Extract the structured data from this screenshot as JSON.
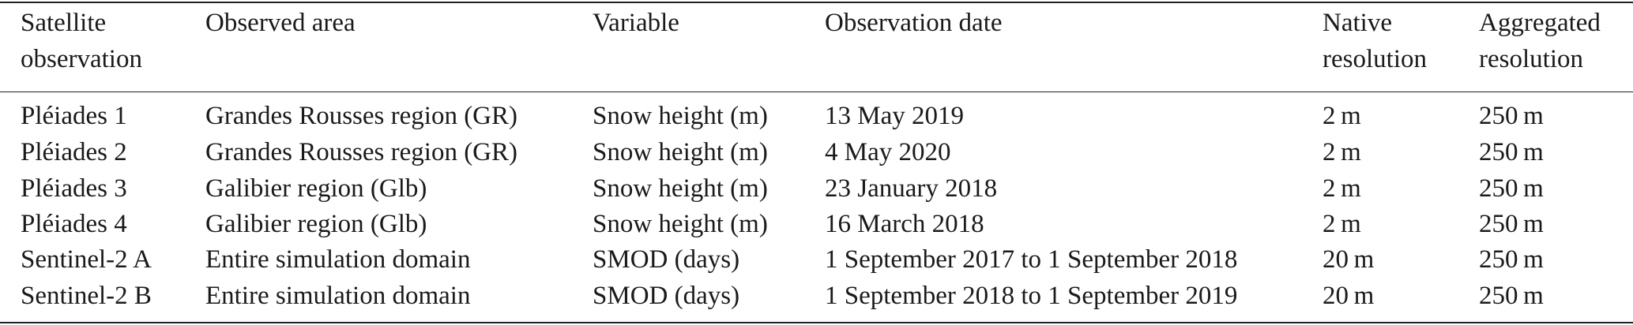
{
  "table": {
    "headers": [
      "Satellite observation",
      "Observed area",
      "Variable",
      "Observation date",
      "Native resolution",
      "Aggregated resolution"
    ],
    "rows": [
      [
        "Pléiades 1",
        "Grandes Rousses region (GR)",
        "Snow height (m)",
        "13 May 2019",
        "2 m",
        "250 m"
      ],
      [
        "Pléiades 2",
        "Grandes Rousses region (GR)",
        "Snow height (m)",
        "4 May 2020",
        "2 m",
        "250 m"
      ],
      [
        "Pléiades 3",
        "Galibier region (Glb)",
        "Snow height (m)",
        "23 January 2018",
        "2 m",
        "250 m"
      ],
      [
        "Pléiades 4",
        "Galibier region (Glb)",
        "Snow height (m)",
        "16 March 2018",
        "2 m",
        "250 m"
      ],
      [
        "Sentinel-2 A",
        "Entire simulation domain",
        "SMOD (days)",
        "1 September 2017 to 1 September 2018",
        "20 m",
        "250 m"
      ],
      [
        "Sentinel-2 B",
        "Entire simulation domain",
        "SMOD (days)",
        "1 September 2018 to 1 September 2019",
        "20 m",
        "250 m"
      ]
    ]
  }
}
